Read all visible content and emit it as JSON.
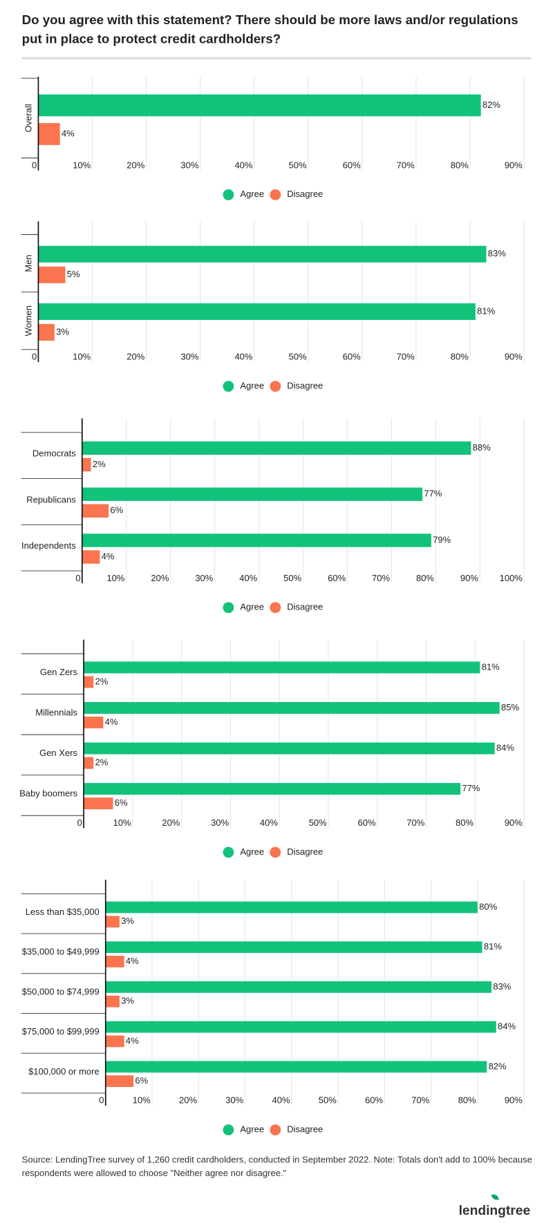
{
  "title": "Do you agree with this statement? There should be more laws and/or regulations put in place to protect credit cardholders?",
  "source": "Source: LendingTree survey of 1,260 credit cardholders, conducted in September 2022. Note: Totals don't add to 100% because respondents were allowed to choose \"Neither agree nor disagree.\"",
  "logo": "lendingtree",
  "chart_data": [
    {
      "type": "bar",
      "orientation": "horizontal",
      "categories": [
        "Overall"
      ],
      "series": [
        {
          "name": "Agree",
          "color": "#12c27b",
          "values": [
            82
          ],
          "value_labels": [
            "82%"
          ]
        },
        {
          "name": "Disagree",
          "color": "#f9744f",
          "values": [
            4
          ],
          "value_labels": [
            "4%"
          ]
        }
      ],
      "xlim": [
        0,
        90
      ],
      "xticks": [
        0,
        {
          "value": 10,
          "label": "10%"
        },
        {
          "value": 20,
          "label": "20%"
        },
        {
          "value": 30,
          "label": "30%"
        },
        {
          "value": 40,
          "label": "40%"
        },
        {
          "value": 50,
          "label": "50%"
        },
        {
          "value": 60,
          "label": "60%"
        },
        {
          "value": 70,
          "label": "70%"
        },
        {
          "value": 80,
          "label": "80%"
        },
        {
          "value": 90,
          "label": "90%"
        }
      ],
      "grid": true,
      "legend": "bottom"
    },
    {
      "type": "bar",
      "orientation": "horizontal",
      "categories": [
        "Men",
        "Women"
      ],
      "series": [
        {
          "name": "Agree",
          "color": "#12c27b",
          "values": [
            83,
            81
          ],
          "value_labels": [
            "83%",
            "81%"
          ]
        },
        {
          "name": "Disagree",
          "color": "#f9744f",
          "values": [
            5,
            3
          ],
          "value_labels": [
            "5%",
            "3%"
          ]
        }
      ],
      "xlim": [
        0,
        90
      ],
      "xticks": [
        0,
        {
          "value": 10,
          "label": "10%"
        },
        {
          "value": 20,
          "label": "20%"
        },
        {
          "value": 30,
          "label": "30%"
        },
        {
          "value": 40,
          "label": "40%"
        },
        {
          "value": 50,
          "label": "50%"
        },
        {
          "value": 60,
          "label": "60%"
        },
        {
          "value": 70,
          "label": "70%"
        },
        {
          "value": 80,
          "label": "80%"
        },
        {
          "value": 90,
          "label": "90%"
        }
      ],
      "grid": true,
      "legend": "bottom"
    },
    {
      "type": "bar",
      "orientation": "horizontal",
      "categories": [
        "Democrats",
        "Republicans",
        "Independents"
      ],
      "series": [
        {
          "name": "Agree",
          "color": "#12c27b",
          "values": [
            88,
            77,
            79
          ],
          "value_labels": [
            "88%",
            "77%",
            "79%"
          ]
        },
        {
          "name": "Disagree",
          "color": "#f9744f",
          "values": [
            2,
            6,
            4
          ],
          "value_labels": [
            "2%",
            "6%",
            "4%"
          ]
        }
      ],
      "xlim": [
        0,
        100
      ],
      "xticks": [
        0,
        {
          "value": 10,
          "label": "10%"
        },
        {
          "value": 20,
          "label": "20%"
        },
        {
          "value": 30,
          "label": "30%"
        },
        {
          "value": 40,
          "label": "40%"
        },
        {
          "value": 50,
          "label": "50%"
        },
        {
          "value": 60,
          "label": "60%"
        },
        {
          "value": 70,
          "label": "70%"
        },
        {
          "value": 80,
          "label": "80%"
        },
        {
          "value": 90,
          "label": "90%"
        },
        {
          "value": 100,
          "label": "100%"
        }
      ],
      "grid": true,
      "legend": "bottom"
    },
    {
      "type": "bar",
      "orientation": "horizontal",
      "categories": [
        "Gen Zers",
        "Millennials",
        "Gen Xers",
        "Baby boomers"
      ],
      "series": [
        {
          "name": "Agree",
          "color": "#12c27b",
          "values": [
            81,
            85,
            84,
            77
          ],
          "value_labels": [
            "81%",
            "85%",
            "84%",
            "77%"
          ]
        },
        {
          "name": "Disagree",
          "color": "#f9744f",
          "values": [
            2,
            4,
            2,
            6
          ],
          "value_labels": [
            "2%",
            "4%",
            "2%",
            "6%"
          ]
        }
      ],
      "xlim": [
        0,
        90
      ],
      "xticks": [
        0,
        {
          "value": 10,
          "label": "10%"
        },
        {
          "value": 20,
          "label": "20%"
        },
        {
          "value": 30,
          "label": "30%"
        },
        {
          "value": 40,
          "label": "40%"
        },
        {
          "value": 50,
          "label": "50%"
        },
        {
          "value": 60,
          "label": "60%"
        },
        {
          "value": 70,
          "label": "70%"
        },
        {
          "value": 80,
          "label": "80%"
        },
        {
          "value": 90,
          "label": "90%"
        }
      ],
      "grid": true,
      "legend": "bottom"
    },
    {
      "type": "bar",
      "orientation": "horizontal",
      "categories": [
        "Less than $35,000",
        "$35,000 to $49,999",
        "$50,000 to $74,999",
        "$75,000 to $99,999",
        "$100,000 or more"
      ],
      "series": [
        {
          "name": "Agree",
          "color": "#12c27b",
          "values": [
            80,
            81,
            83,
            84,
            82
          ],
          "value_labels": [
            "80%",
            "81%",
            "83%",
            "84%",
            "82%"
          ]
        },
        {
          "name": "Disagree",
          "color": "#f9744f",
          "values": [
            3,
            4,
            3,
            4,
            6
          ],
          "value_labels": [
            "3%",
            "4%",
            "3%",
            "4%",
            "6%"
          ]
        }
      ],
      "xlim": [
        0,
        90
      ],
      "xticks": [
        0,
        {
          "value": 10,
          "label": "10%"
        },
        {
          "value": 20,
          "label": "20%"
        },
        {
          "value": 30,
          "label": "30%"
        },
        {
          "value": 40,
          "label": "40%"
        },
        {
          "value": 50,
          "label": "50%"
        },
        {
          "value": 60,
          "label": "60%"
        },
        {
          "value": 70,
          "label": "70%"
        },
        {
          "value": 80,
          "label": "80%"
        },
        {
          "value": 90,
          "label": "90%"
        }
      ],
      "grid": true,
      "legend": "bottom"
    }
  ]
}
